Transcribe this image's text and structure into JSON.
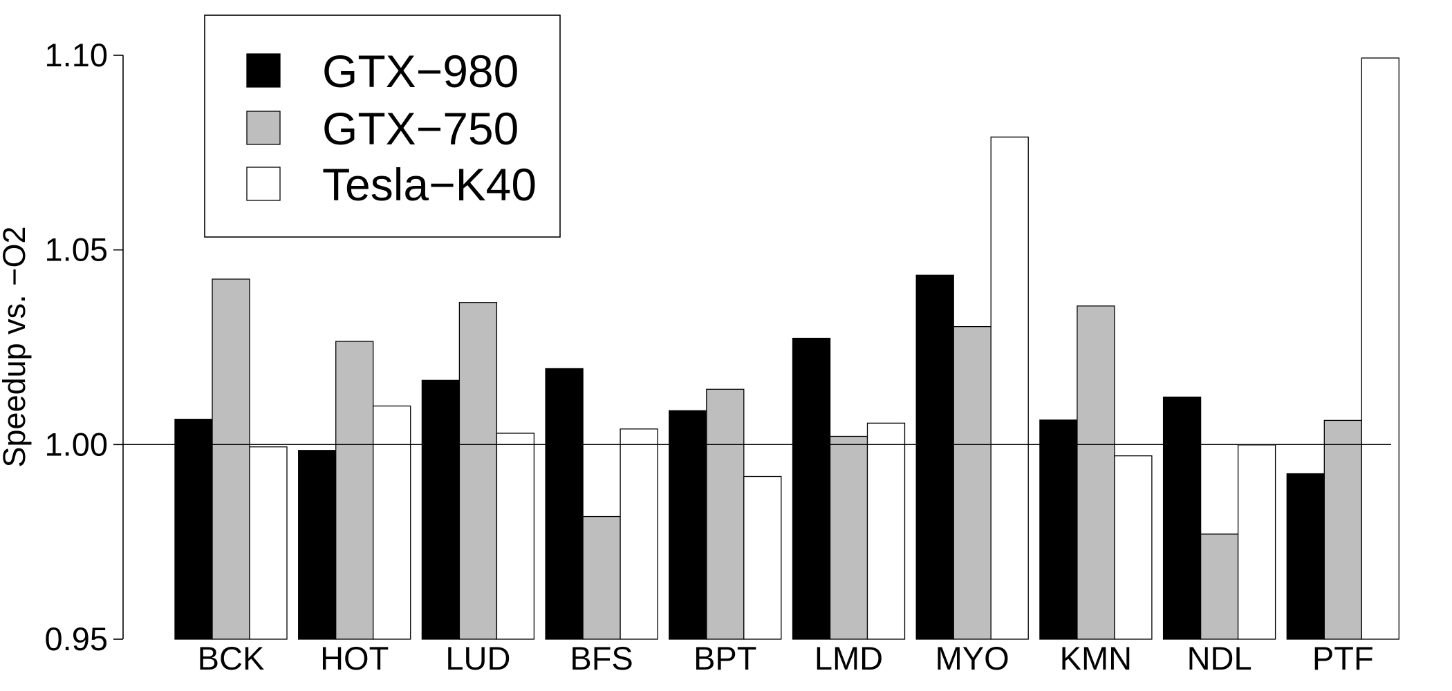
{
  "chart_data": {
    "type": "bar",
    "title": "",
    "xlabel": "",
    "ylabel": "Speedup vs. −O2",
    "ylim": [
      0.95,
      1.1
    ],
    "yticks": [
      0.95,
      1.0,
      1.05,
      1.1
    ],
    "ytick_labels": [
      "0.95",
      "1.00",
      "1.05",
      "1.10"
    ],
    "reference_line": 1.0,
    "categories": [
      "BCK",
      "HOT",
      "LUD",
      "BFS",
      "BPT",
      "LMD",
      "MYO",
      "KMN",
      "NDL",
      "PTF"
    ],
    "series": [
      {
        "name": "GTX−980",
        "color": "#000000",
        "values": [
          1.0065,
          0.9985,
          1.0165,
          1.0195,
          1.0087,
          1.0273,
          1.0435,
          1.0063,
          1.0122,
          0.9925
        ]
      },
      {
        "name": "GTX−750",
        "color": "#bebebe",
        "values": [
          1.0425,
          1.0265,
          1.0365,
          0.9815,
          1.0142,
          1.0021,
          1.0303,
          1.0356,
          0.977,
          1.0062
        ]
      },
      {
        "name": "Tesla−K40",
        "color": "#ffffff",
        "values": [
          0.9994,
          1.0099,
          1.0029,
          1.004,
          0.9918,
          1.0055,
          1.079,
          0.9971,
          0.9999,
          1.0993
        ]
      }
    ],
    "legend": {
      "position": "top-left",
      "framed": true
    },
    "grid": false
  }
}
